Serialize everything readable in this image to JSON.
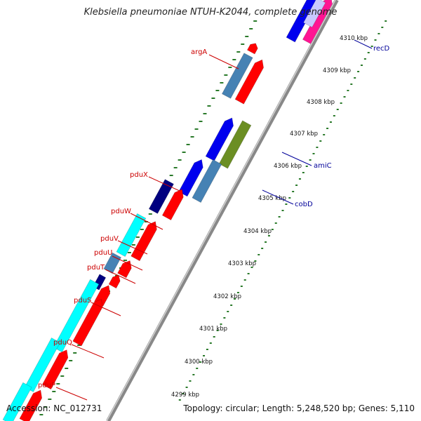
{
  "title": "Klebsiella pneumoniae NTUH-K2044, complete genome",
  "footer": {
    "accession": "Accession: NC_012731",
    "topology": "Topology: circular; Length: 5,248,520 bp; Genes: 5,110"
  },
  "colors": {
    "backbone": "#888888",
    "tick": "#2a7a2a",
    "label_red": "#cc0000",
    "label_blue": "#000099",
    "gene_red": "#ff0000",
    "gene_blue": "#0000ee",
    "gene_navy": "#000080",
    "gene_steel": "#4682b4",
    "gene_cyan": "#00ffff",
    "gene_olive": "#6b8e23",
    "gene_magenta": "#ff1493"
  },
  "axis": {
    "unit": "kbp",
    "ticks": [
      "4299 kbp",
      "4300 kbp",
      "4301 kbp",
      "4302 kbp",
      "4303 kbp",
      "4304 kbp",
      "4305 kbp",
      "4306 kbp",
      "4307 kbp",
      "4308 kbp",
      "4309 kbp",
      "4310 kbp"
    ]
  },
  "gene_labels": [
    {
      "name": "argA",
      "side": "left"
    },
    {
      "name": "pduX",
      "side": "left"
    },
    {
      "name": "pduW",
      "side": "left"
    },
    {
      "name": "pduV",
      "side": "left"
    },
    {
      "name": "pduU",
      "side": "left"
    },
    {
      "name": "pduT",
      "side": "left"
    },
    {
      "name": "pduS",
      "side": "left"
    },
    {
      "name": "pduQ",
      "side": "left"
    },
    {
      "name": "pduP",
      "side": "left"
    },
    {
      "name": "recD",
      "side": "right"
    },
    {
      "name": "amiC",
      "side": "right"
    },
    {
      "name": "cobD",
      "side": "right"
    }
  ]
}
